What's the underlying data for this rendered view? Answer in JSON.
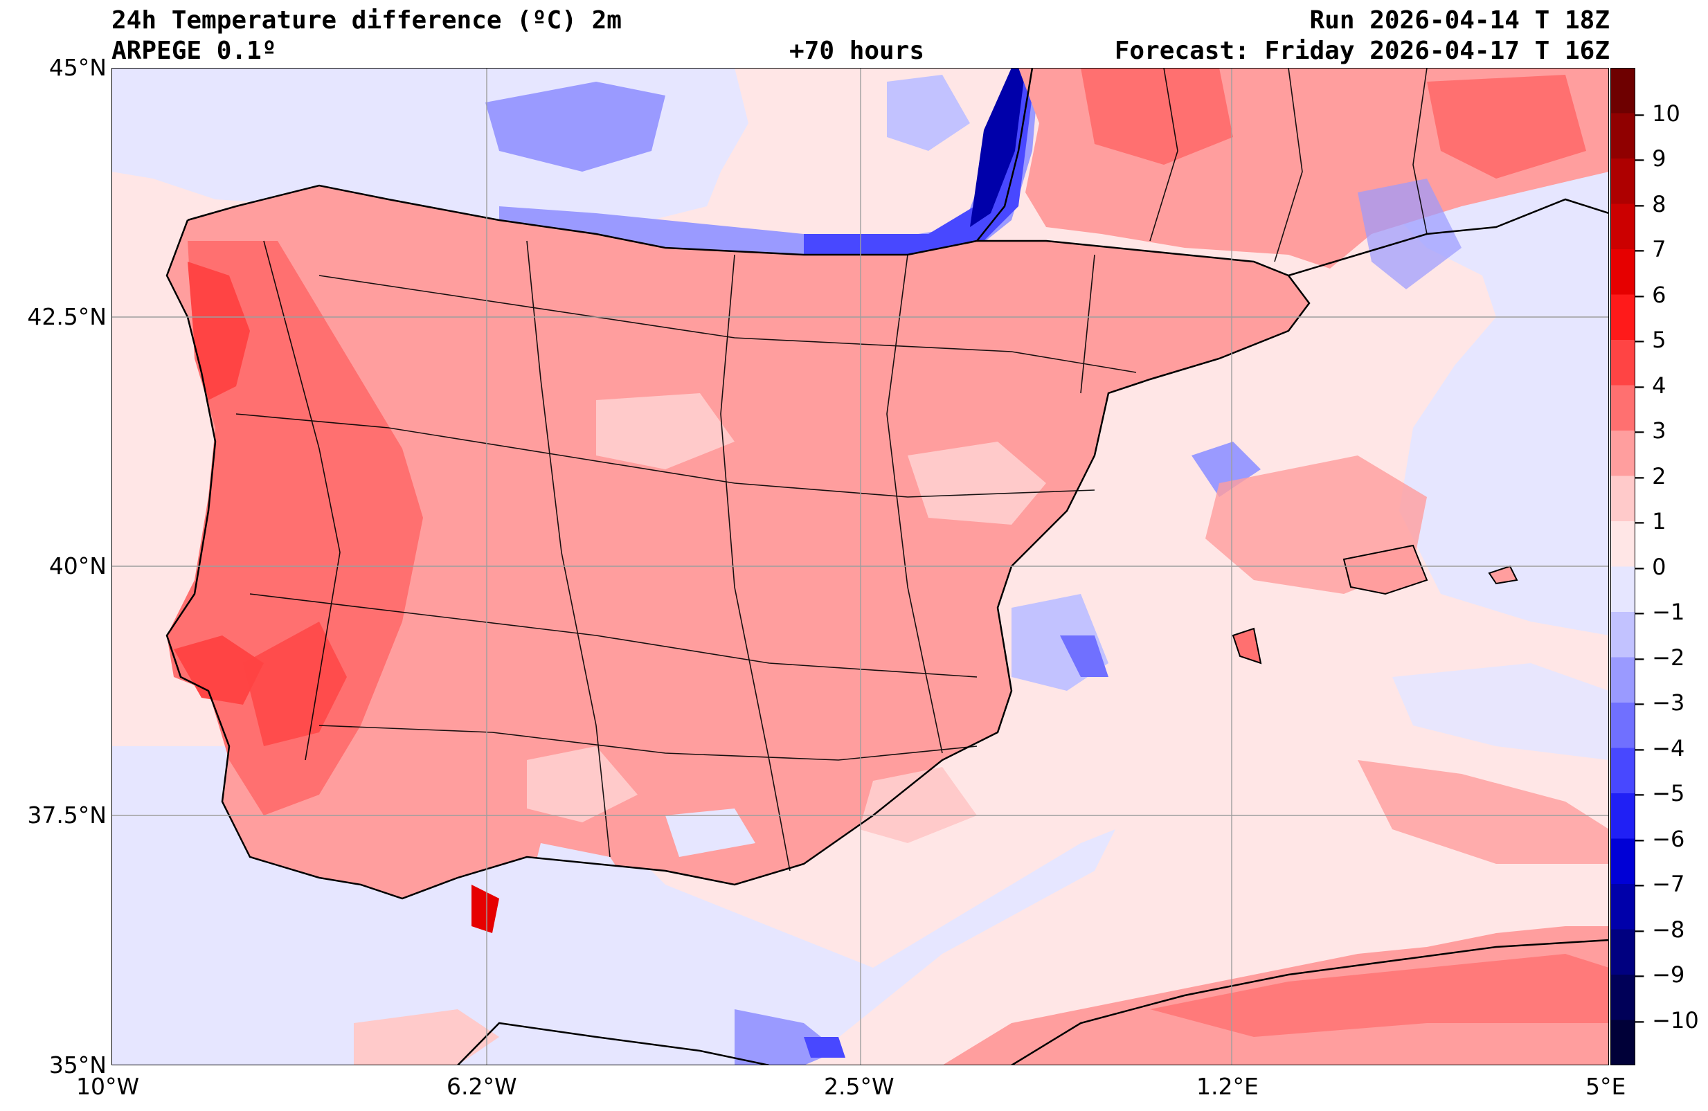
{
  "header": {
    "title": "24h Temperature difference (ºC) 2m",
    "model": "ARPEGE 0.1º",
    "lead": "+70 hours",
    "run": "Run 2026-04-14 T 18Z",
    "forecast": "Forecast: Friday 2026-04-17 T 16Z"
  },
  "axes": {
    "lat_ticks": [
      "45°N",
      "42.5°N",
      "40°N",
      "37.5°N",
      "35°N"
    ],
    "lon_ticks": [
      "10°W",
      "6.2°W",
      "2.5°W",
      "1.2°E",
      "5°E"
    ]
  },
  "colorbar": {
    "ticks": [
      "10",
      "9",
      "8",
      "7",
      "6",
      "5",
      "4",
      "3",
      "2",
      "1",
      "0",
      "−1",
      "−2",
      "−3",
      "−4",
      "−5",
      "−6",
      "−7",
      "−8",
      "−9",
      "−10"
    ],
    "colors": [
      "#6e0000",
      "#900000",
      "#ae0000",
      "#cc0000",
      "#e60000",
      "#ff1a1a",
      "#ff4444",
      "#ff7070",
      "#ff9e9e",
      "#ffcaca",
      "#ffe6e6",
      "#e6e6ff",
      "#c2c2ff",
      "#9a9aff",
      "#7070ff",
      "#4848ff",
      "#2020f5",
      "#0000d6",
      "#0000aa",
      "#000080",
      "#000058",
      "#000038"
    ]
  },
  "chart_data": {
    "type": "heatmap",
    "title": "24h Temperature difference (ºC) 2m",
    "lon_range": [
      -10,
      5
    ],
    "lat_range": [
      35,
      45
    ],
    "levels": [
      -11,
      -10,
      -9,
      -8,
      -7,
      -6,
      -5,
      -4,
      -3,
      -2,
      -1,
      0,
      1,
      2,
      3,
      4,
      5,
      6,
      7,
      8,
      9,
      10,
      11
    ],
    "grid": true,
    "colorbar_location": "right"
  }
}
